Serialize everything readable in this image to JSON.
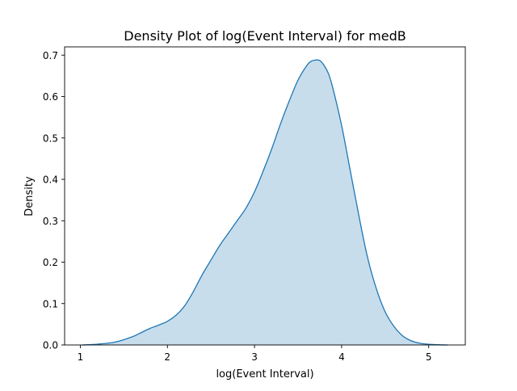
{
  "chart_data": {
    "type": "area",
    "title": "Density Plot of log(Event Interval) for medB",
    "xlabel": "log(Event Interval)",
    "ylabel": "Density",
    "xlim": [
      0.82,
      5.42
    ],
    "ylim": [
      0,
      0.72
    ],
    "xticks": [
      1,
      2,
      3,
      4,
      5
    ],
    "yticks": [
      0.0,
      0.1,
      0.2,
      0.3,
      0.4,
      0.5,
      0.6,
      0.7
    ],
    "grid": false,
    "legend": "none",
    "colors": {
      "line": "#1f77b4",
      "fill": "#1f77b4",
      "fill_opacity": 0.25
    },
    "series": [
      {
        "x": [
          1.02,
          1.2,
          1.4,
          1.6,
          1.7,
          1.8,
          1.9,
          2.0,
          2.1,
          2.2,
          2.3,
          2.4,
          2.5,
          2.6,
          2.7,
          2.8,
          2.9,
          3.0,
          3.1,
          3.2,
          3.3,
          3.4,
          3.5,
          3.6,
          3.65,
          3.7,
          3.75,
          3.8,
          3.85,
          3.9,
          4.0,
          4.1,
          4.2,
          4.3,
          4.4,
          4.5,
          4.6,
          4.7,
          4.8,
          4.9,
          5.0,
          5.1,
          5.22
        ],
        "y": [
          0.0,
          0.002,
          0.007,
          0.02,
          0.03,
          0.04,
          0.048,
          0.057,
          0.072,
          0.095,
          0.13,
          0.17,
          0.205,
          0.24,
          0.27,
          0.3,
          0.33,
          0.37,
          0.42,
          0.475,
          0.535,
          0.59,
          0.64,
          0.675,
          0.685,
          0.688,
          0.687,
          0.675,
          0.655,
          0.62,
          0.53,
          0.42,
          0.31,
          0.21,
          0.135,
          0.08,
          0.045,
          0.022,
          0.01,
          0.004,
          0.0015,
          0.0005,
          0.0
        ]
      }
    ]
  }
}
